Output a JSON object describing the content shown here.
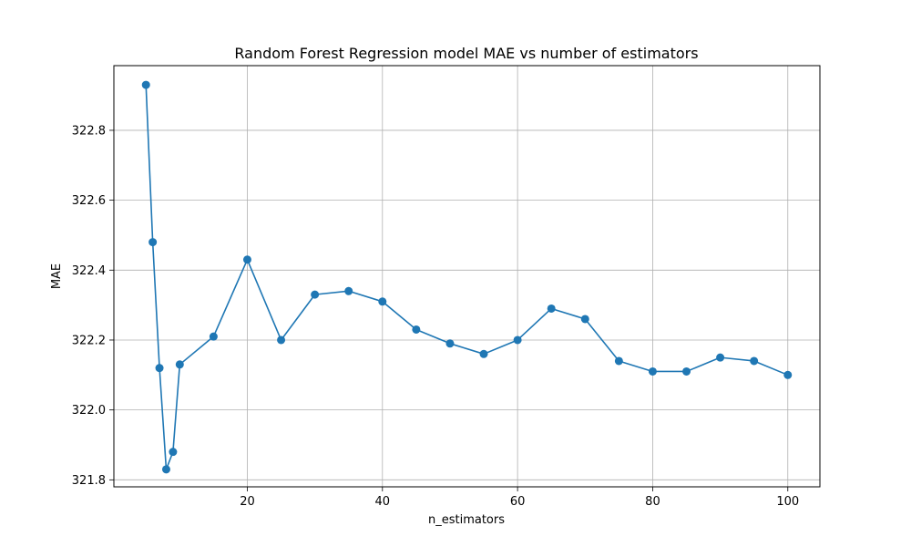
{
  "chart_data": {
    "type": "line",
    "title": "Random Forest Regression model MAE vs number of estimators",
    "xlabel": "n_estimators",
    "ylabel": "MAE",
    "xlim": [
      0.25,
      104.75
    ],
    "ylim": [
      321.78,
      322.985
    ],
    "xticks": [
      20,
      40,
      60,
      80,
      100
    ],
    "xtick_labels": [
      "20",
      "40",
      "60",
      "80",
      "100"
    ],
    "yticks": [
      321.8,
      322.0,
      322.2,
      322.4,
      322.6,
      322.8
    ],
    "ytick_labels": [
      "321.8",
      "322.0",
      "322.2",
      "322.4",
      "322.6",
      "322.8"
    ],
    "grid": true,
    "line_color": "#1f77b4",
    "marker": "circle",
    "x": [
      5,
      6,
      7,
      8,
      9,
      10,
      15,
      20,
      25,
      30,
      35,
      40,
      45,
      50,
      55,
      60,
      65,
      70,
      75,
      80,
      85,
      90,
      95,
      100
    ],
    "y": [
      322.93,
      322.48,
      322.12,
      321.83,
      321.88,
      322.13,
      322.21,
      322.43,
      322.2,
      322.33,
      322.34,
      322.31,
      322.23,
      322.19,
      322.16,
      322.2,
      322.29,
      322.26,
      322.14,
      322.11,
      322.11,
      322.15,
      322.14,
      322.1
    ]
  }
}
